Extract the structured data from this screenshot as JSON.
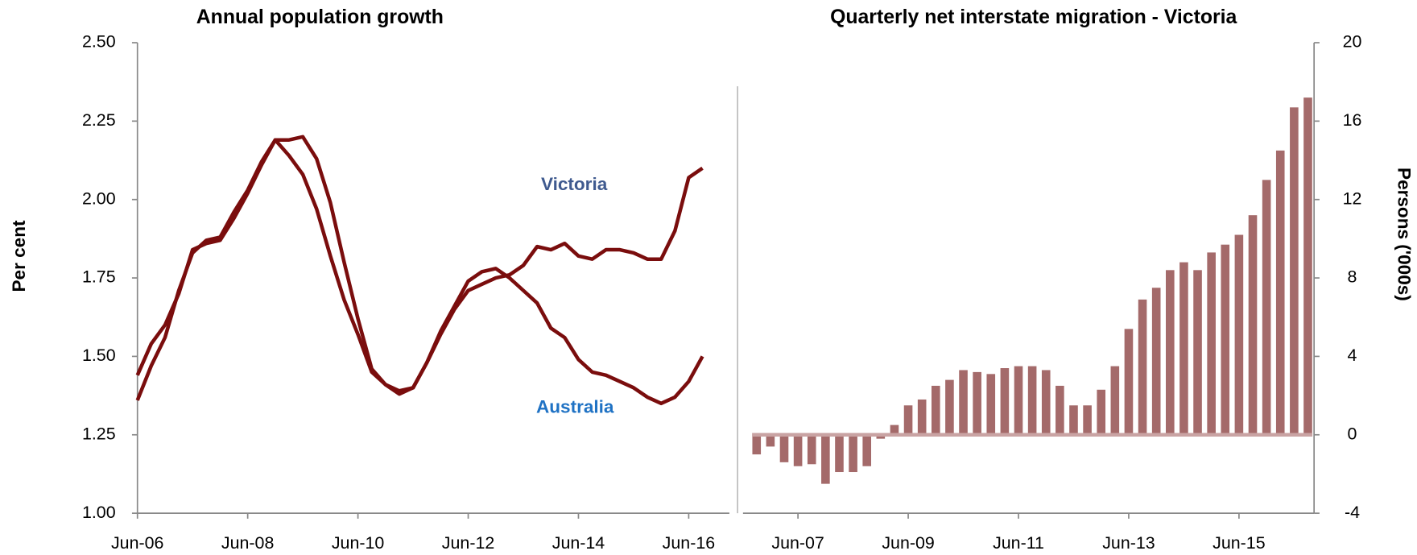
{
  "chart_data": [
    {
      "type": "line",
      "title": "Annual population growth",
      "y_label": "Per cent",
      "categories": [
        "Jun-06",
        null,
        null,
        null,
        null,
        null,
        null,
        null,
        "Jun-08",
        null,
        null,
        null,
        null,
        null,
        null,
        null,
        "Jun-10",
        null,
        null,
        null,
        null,
        null,
        null,
        null,
        "Jun-12",
        null,
        null,
        null,
        null,
        null,
        null,
        null,
        "Jun-14",
        null,
        null,
        null,
        null,
        null,
        null,
        null,
        "Jun-16",
        null
      ],
      "series": [
        {
          "name": "Victoria",
          "color": "#7a0d0d",
          "label_color": "#3f5a8f",
          "values": [
            1.44,
            1.54,
            1.6,
            1.7,
            1.84,
            1.86,
            1.87,
            1.94,
            2.02,
            2.11,
            2.19,
            2.14,
            2.08,
            1.97,
            1.82,
            1.68,
            1.57,
            1.45,
            1.41,
            1.39,
            1.4,
            1.48,
            1.57,
            1.65,
            1.71,
            1.73,
            1.75,
            1.76,
            1.79,
            1.85,
            1.84,
            1.86,
            1.82,
            1.81,
            1.84,
            1.84,
            1.83,
            1.81,
            1.81,
            1.9,
            2.07,
            2.1
          ]
        },
        {
          "name": "Australia",
          "color": "#7a0d0d",
          "label_color": "#1f72c4",
          "values": [
            1.36,
            1.47,
            1.56,
            1.71,
            1.83,
            1.87,
            1.88,
            1.96,
            2.03,
            2.12,
            2.19,
            2.19,
            2.2,
            2.13,
            1.99,
            1.8,
            1.62,
            1.46,
            1.41,
            1.38,
            1.4,
            1.48,
            1.58,
            1.66,
            1.74,
            1.77,
            1.78,
            1.75,
            1.71,
            1.67,
            1.59,
            1.56,
            1.49,
            1.45,
            1.44,
            1.42,
            1.4,
            1.37,
            1.35,
            1.37,
            1.42,
            1.5
          ]
        }
      ],
      "ylim": [
        1.0,
        2.5
      ],
      "yticks": [
        {
          "value": 1.0,
          "label": "1.00"
        },
        {
          "value": 1.25,
          "label": "1.25"
        },
        {
          "value": 1.5,
          "label": "1.50"
        },
        {
          "value": 1.75,
          "label": "1.75"
        },
        {
          "value": 2.0,
          "label": "2.00"
        },
        {
          "value": 2.25,
          "label": "2.25"
        },
        {
          "value": 2.5,
          "label": "2.50"
        }
      ]
    },
    {
      "type": "bar",
      "title": "Quarterly net interstate migration - Victoria",
      "y_label": "Persons ('000s)",
      "color": "#a46a6a",
      "categories": [
        null,
        null,
        null,
        "Jun-07",
        null,
        null,
        null,
        null,
        null,
        null,
        null,
        "Jun-09",
        null,
        null,
        null,
        null,
        null,
        null,
        null,
        "Jun-11",
        null,
        null,
        null,
        null,
        null,
        null,
        null,
        "Jun-13",
        null,
        null,
        null,
        null,
        null,
        null,
        null,
        "Jun-15",
        null,
        null,
        null,
        null,
        null
      ],
      "values": [
        -1.0,
        -0.6,
        -1.4,
        -1.6,
        -1.5,
        -2.5,
        -1.9,
        -1.9,
        -1.6,
        -0.2,
        0.5,
        1.5,
        1.8,
        2.5,
        2.8,
        3.3,
        3.2,
        3.1,
        3.4,
        3.5,
        3.5,
        3.3,
        2.5,
        1.5,
        1.5,
        2.3,
        3.5,
        5.4,
        6.9,
        7.5,
        8.4,
        8.8,
        8.4,
        9.3,
        9.7,
        10.2,
        11.2,
        13.0,
        14.5,
        16.7,
        17.2
      ],
      "ylim": [
        -4,
        20
      ],
      "yticks": [
        -4,
        0,
        4,
        8,
        12,
        16,
        20
      ]
    }
  ]
}
